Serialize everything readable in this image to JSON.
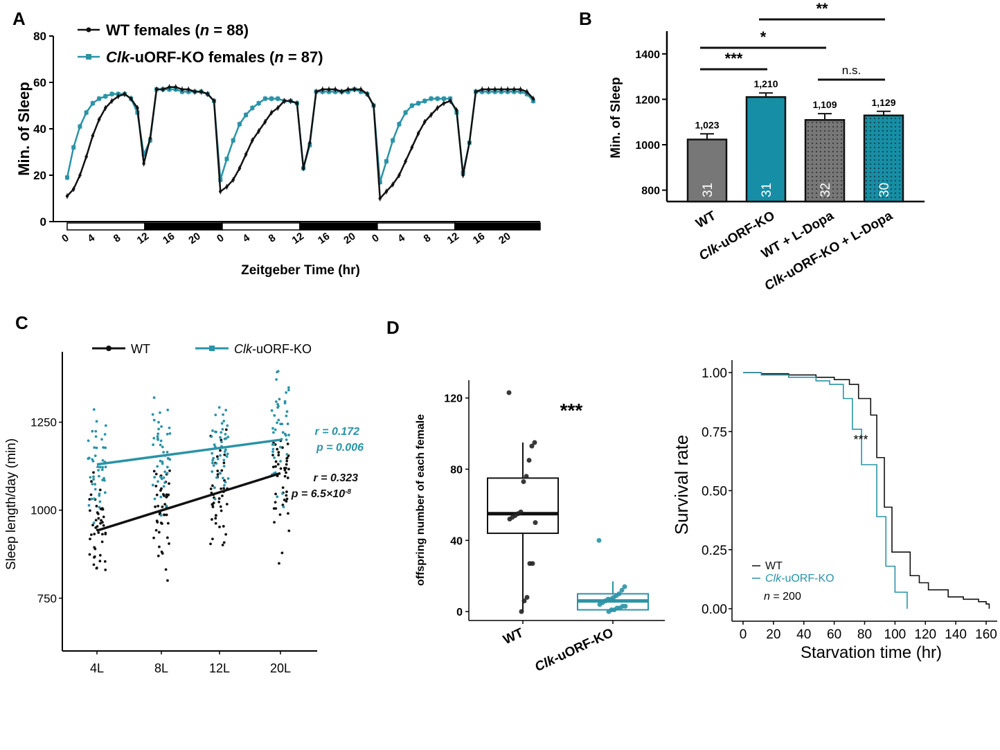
{
  "chart_data": [
    {
      "id": "A",
      "type": "line",
      "panel_label": "A",
      "xlabel": "Zeitgeber Time (hr)",
      "ylabel": "Min. of Sleep",
      "ylim": [
        0,
        80
      ],
      "yticks": [
        0,
        20,
        40,
        60,
        80
      ],
      "x_tick_labels": [
        "0",
        "4",
        "8",
        "12",
        "16",
        "20",
        "0",
        "4",
        "8",
        "12",
        "16",
        "20",
        "0",
        "4",
        "8",
        "12",
        "16",
        "20"
      ],
      "series": [
        {
          "name_prefix": "WT females (",
          "name_n": "n",
          "name_suffix": " = 88)",
          "color": "#111111",
          "values": [
            11,
            14,
            20,
            28,
            37,
            44,
            49,
            52,
            54,
            55,
            53,
            49,
            25,
            36,
            57,
            57,
            58,
            58,
            57,
            57,
            56,
            56,
            55,
            52,
            13,
            15,
            18,
            23,
            29,
            35,
            39,
            43,
            47,
            49,
            52,
            52,
            51,
            23,
            34,
            56,
            57,
            57,
            57,
            56,
            57,
            57,
            57,
            55,
            50,
            10,
            13,
            16,
            20,
            26,
            32,
            38,
            43,
            46,
            49,
            51,
            52,
            48,
            20,
            34,
            56,
            57,
            57,
            57,
            57,
            57,
            57,
            57,
            56,
            53
          ]
        },
        {
          "name_prefix": "Clk",
          "name_mid": "-uORF-KO females (",
          "name_n": "n",
          "name_suffix": " = 87)",
          "color": "#2a93a6",
          "values": [
            19,
            32,
            41,
            47,
            51,
            53,
            54,
            55,
            55,
            55,
            53,
            47,
            29,
            35,
            57,
            57,
            57,
            57,
            56,
            56,
            56,
            56,
            55,
            52,
            18,
            27,
            35,
            42,
            46,
            49,
            51,
            53,
            53,
            53,
            52,
            52,
            51,
            23,
            33,
            56,
            56,
            56,
            56,
            56,
            56,
            57,
            56,
            55,
            50,
            17,
            26,
            35,
            42,
            47,
            50,
            51,
            52,
            53,
            53,
            53,
            53,
            47,
            21,
            34,
            56,
            56,
            56,
            56,
            56,
            56,
            56,
            56,
            55,
            52
          ]
        }
      ],
      "light_dark_bar": [
        "light",
        "dark",
        "light",
        "dark",
        "light",
        "dark"
      ]
    },
    {
      "id": "B",
      "type": "bar",
      "panel_label": "B",
      "ylabel": "Min. of Sleep",
      "ylim": [
        750,
        1500
      ],
      "yticks": [
        800,
        1000,
        1200,
        1400
      ],
      "categories": [
        {
          "prefix": "",
          "italic": "",
          "text": "WT"
        },
        {
          "prefix": "",
          "italic": "Clk",
          "text": "-uORF-KO"
        },
        {
          "prefix": "",
          "italic": "",
          "text": "WT + L-Dopa"
        },
        {
          "prefix": "",
          "italic": "Clk",
          "text": "-uORF-KO + L-Dopa"
        }
      ],
      "values": [
        1023,
        1210,
        1109,
        1129
      ],
      "errors": [
        25,
        18,
        28,
        18
      ],
      "value_labels": [
        "1,023",
        "1,210",
        "1,109",
        "1,129"
      ],
      "n_labels": [
        "31",
        "31",
        "32",
        "30"
      ],
      "colors": [
        "#777777",
        "#168ea5",
        "#777777",
        "#168ea5"
      ],
      "dotted": [
        false,
        false,
        true,
        true
      ],
      "significance": [
        {
          "from": 0,
          "to": 1,
          "label": "***"
        },
        {
          "from": 0,
          "to": 2,
          "label": "*"
        },
        {
          "from": 1,
          "to": 3,
          "label": "**"
        },
        {
          "from": 2,
          "to": 3,
          "label": "n.s."
        }
      ]
    },
    {
      "id": "C",
      "type": "scatter",
      "panel_label": "C",
      "ylabel": "Sleep length/day (min)",
      "ylim": [
        600,
        1450
      ],
      "yticks": [
        750,
        1000,
        1250
      ],
      "categories": [
        "4L",
        "8L",
        "12L",
        "20L"
      ],
      "legend": [
        {
          "prefix": "",
          "italic": "",
          "text": "WT",
          "color": "#111111",
          "marker": "circle"
        },
        {
          "prefix": "",
          "italic": "Clk",
          "text": "-uORF-KO",
          "color": "#2a93a6",
          "marker": "square"
        }
      ],
      "fit_lines": [
        {
          "color": "#111111",
          "start": 942,
          "end": 1105,
          "r_label": "r = 0.323",
          "p_label": "p = 6.5×10",
          "p_exp": "-8"
        },
        {
          "color": "#2a93a6",
          "start": 1130,
          "end": 1200,
          "r_label": "r = 0.172",
          "p_label": "p = 0.006",
          "p_exp": ""
        }
      ],
      "group_means": {
        "WT": [
          942,
          995,
          1050,
          1105
        ],
        "Clk-uORF-KO": [
          1130,
          1155,
          1175,
          1200
        ]
      },
      "group_spread": [
        130,
        130,
        130,
        150
      ]
    },
    {
      "id": "D1",
      "type": "box",
      "panel_label": "D",
      "ylabel": "offspring number of each female",
      "ylim": [
        -5,
        130
      ],
      "yticks": [
        0,
        40,
        80,
        120
      ],
      "categories": [
        {
          "italic": "",
          "text": "WT",
          "color": "#111111"
        },
        {
          "italic": "Clk",
          "text": "-uORF-KO",
          "color": "#2a93a6"
        }
      ],
      "boxes": [
        {
          "q1": 44,
          "median": 55,
          "q3": 75,
          "whisker_low": 0,
          "whisker_high": 95
        },
        {
          "q1": 1,
          "median": 6,
          "q3": 10,
          "whisker_low": 0,
          "whisker_high": 17
        }
      ],
      "points": [
        [
          123,
          95,
          93,
          85,
          76,
          73,
          56,
          55,
          54,
          53,
          52,
          50,
          27,
          27,
          8,
          6,
          0
        ],
        [
          40,
          14,
          12,
          10,
          9,
          8,
          7,
          7,
          6,
          5,
          4,
          3,
          3,
          2,
          2,
          1,
          1,
          0
        ]
      ],
      "significance": "***"
    },
    {
      "id": "D2",
      "type": "line",
      "subtype": "step",
      "xlabel": "Starvation time (hr)",
      "ylabel": "Survival rate",
      "xlim": [
        0,
        165
      ],
      "ylim": [
        0,
        1.03
      ],
      "xticks": [
        0,
        20,
        40,
        60,
        80,
        100,
        120,
        140,
        160
      ],
      "yticks": [
        0.0,
        0.25,
        0.5,
        0.75,
        1.0
      ],
      "ytick_labels": [
        "0.00",
        "0.25",
        "0.50",
        "0.75",
        "1.00"
      ],
      "series": [
        {
          "name_italic": "",
          "name": "WT",
          "color": "#111111",
          "steps": [
            [
              0,
              1.0
            ],
            [
              12,
              0.995
            ],
            [
              30,
              0.99
            ],
            [
              48,
              0.98
            ],
            [
              60,
              0.97
            ],
            [
              70,
              0.95
            ],
            [
              76,
              0.89
            ],
            [
              84,
              0.82
            ],
            [
              88,
              0.64
            ],
            [
              93,
              0.43
            ],
            [
              98,
              0.24
            ],
            [
              110,
              0.14
            ],
            [
              116,
              0.11
            ],
            [
              122,
              0.08
            ],
            [
              135,
              0.05
            ],
            [
              145,
              0.04
            ],
            [
              155,
              0.03
            ],
            [
              160,
              0.02
            ],
            [
              162,
              0.0
            ]
          ]
        },
        {
          "name_italic": "Clk",
          "name": "-uORF-KO",
          "color": "#2a93a6",
          "steps": [
            [
              0,
              1.0
            ],
            [
              12,
              0.99
            ],
            [
              30,
              0.98
            ],
            [
              48,
              0.965
            ],
            [
              57,
              0.95
            ],
            [
              66,
              0.89
            ],
            [
              72,
              0.76
            ],
            [
              78,
              0.61
            ],
            [
              88,
              0.39
            ],
            [
              94,
              0.18
            ],
            [
              100,
              0.07
            ],
            [
              108,
              0.0
            ]
          ]
        }
      ],
      "annotation": "***",
      "n_label_italic": "n",
      "n_label_rest": " = 200"
    }
  ]
}
